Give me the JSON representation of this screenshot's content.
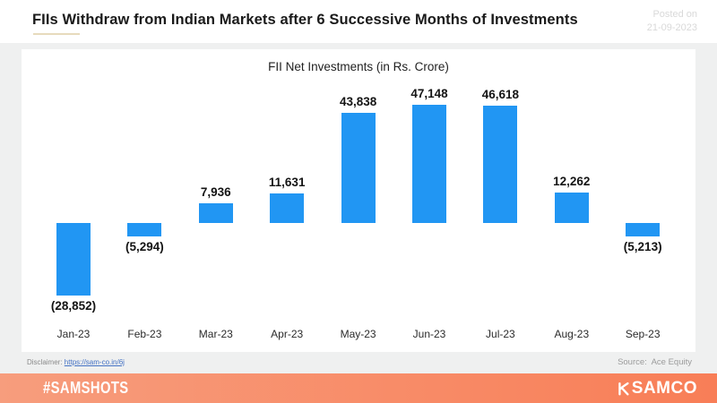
{
  "header": {
    "title": "FIIs Withdraw from Indian Markets after 6 Successive Months of Investments",
    "posted_label": "Posted on",
    "posted_date": "21-09-2023"
  },
  "chart_data": {
    "type": "bar",
    "title": "FII Net Investments (in Rs. Crore)",
    "categories": [
      "Jan-23",
      "Feb-23",
      "Mar-23",
      "Apr-23",
      "May-23",
      "Jun-23",
      "Jul-23",
      "Aug-23",
      "Sep-23"
    ],
    "values": [
      -28852,
      -5294,
      7936,
      11631,
      43838,
      47148,
      46618,
      12262,
      -5213
    ],
    "value_labels": [
      "(28,852)",
      "(5,294)",
      "7,936",
      "11,631",
      "43,838",
      "47,148",
      "46,618",
      "12,262",
      "(5,213)"
    ],
    "bar_color": "#2196F3",
    "ylim": [
      -32000,
      50000
    ],
    "grid": false,
    "legend": false,
    "xlabel": "",
    "ylabel": ""
  },
  "footer_meta": {
    "disclaimer_label": "Disclaimer:",
    "disclaimer_link": "https://sam-co.in/6j",
    "source_label": "Source:",
    "source_value": "Ace Equity"
  },
  "brand_bar": {
    "hashtag": "#SAMSHOTS",
    "brand": "SAMCO"
  },
  "colors": {
    "bar": "#2196F3",
    "page_background": "#EFF0F0",
    "card_background": "#FFFFFF",
    "title_underline": "#E7DBBD",
    "posted_text": "#D9D9D9",
    "link": "#4472C4",
    "footer_gradient_left": "#F79D7D",
    "footer_gradient_right": "#F87E57"
  }
}
